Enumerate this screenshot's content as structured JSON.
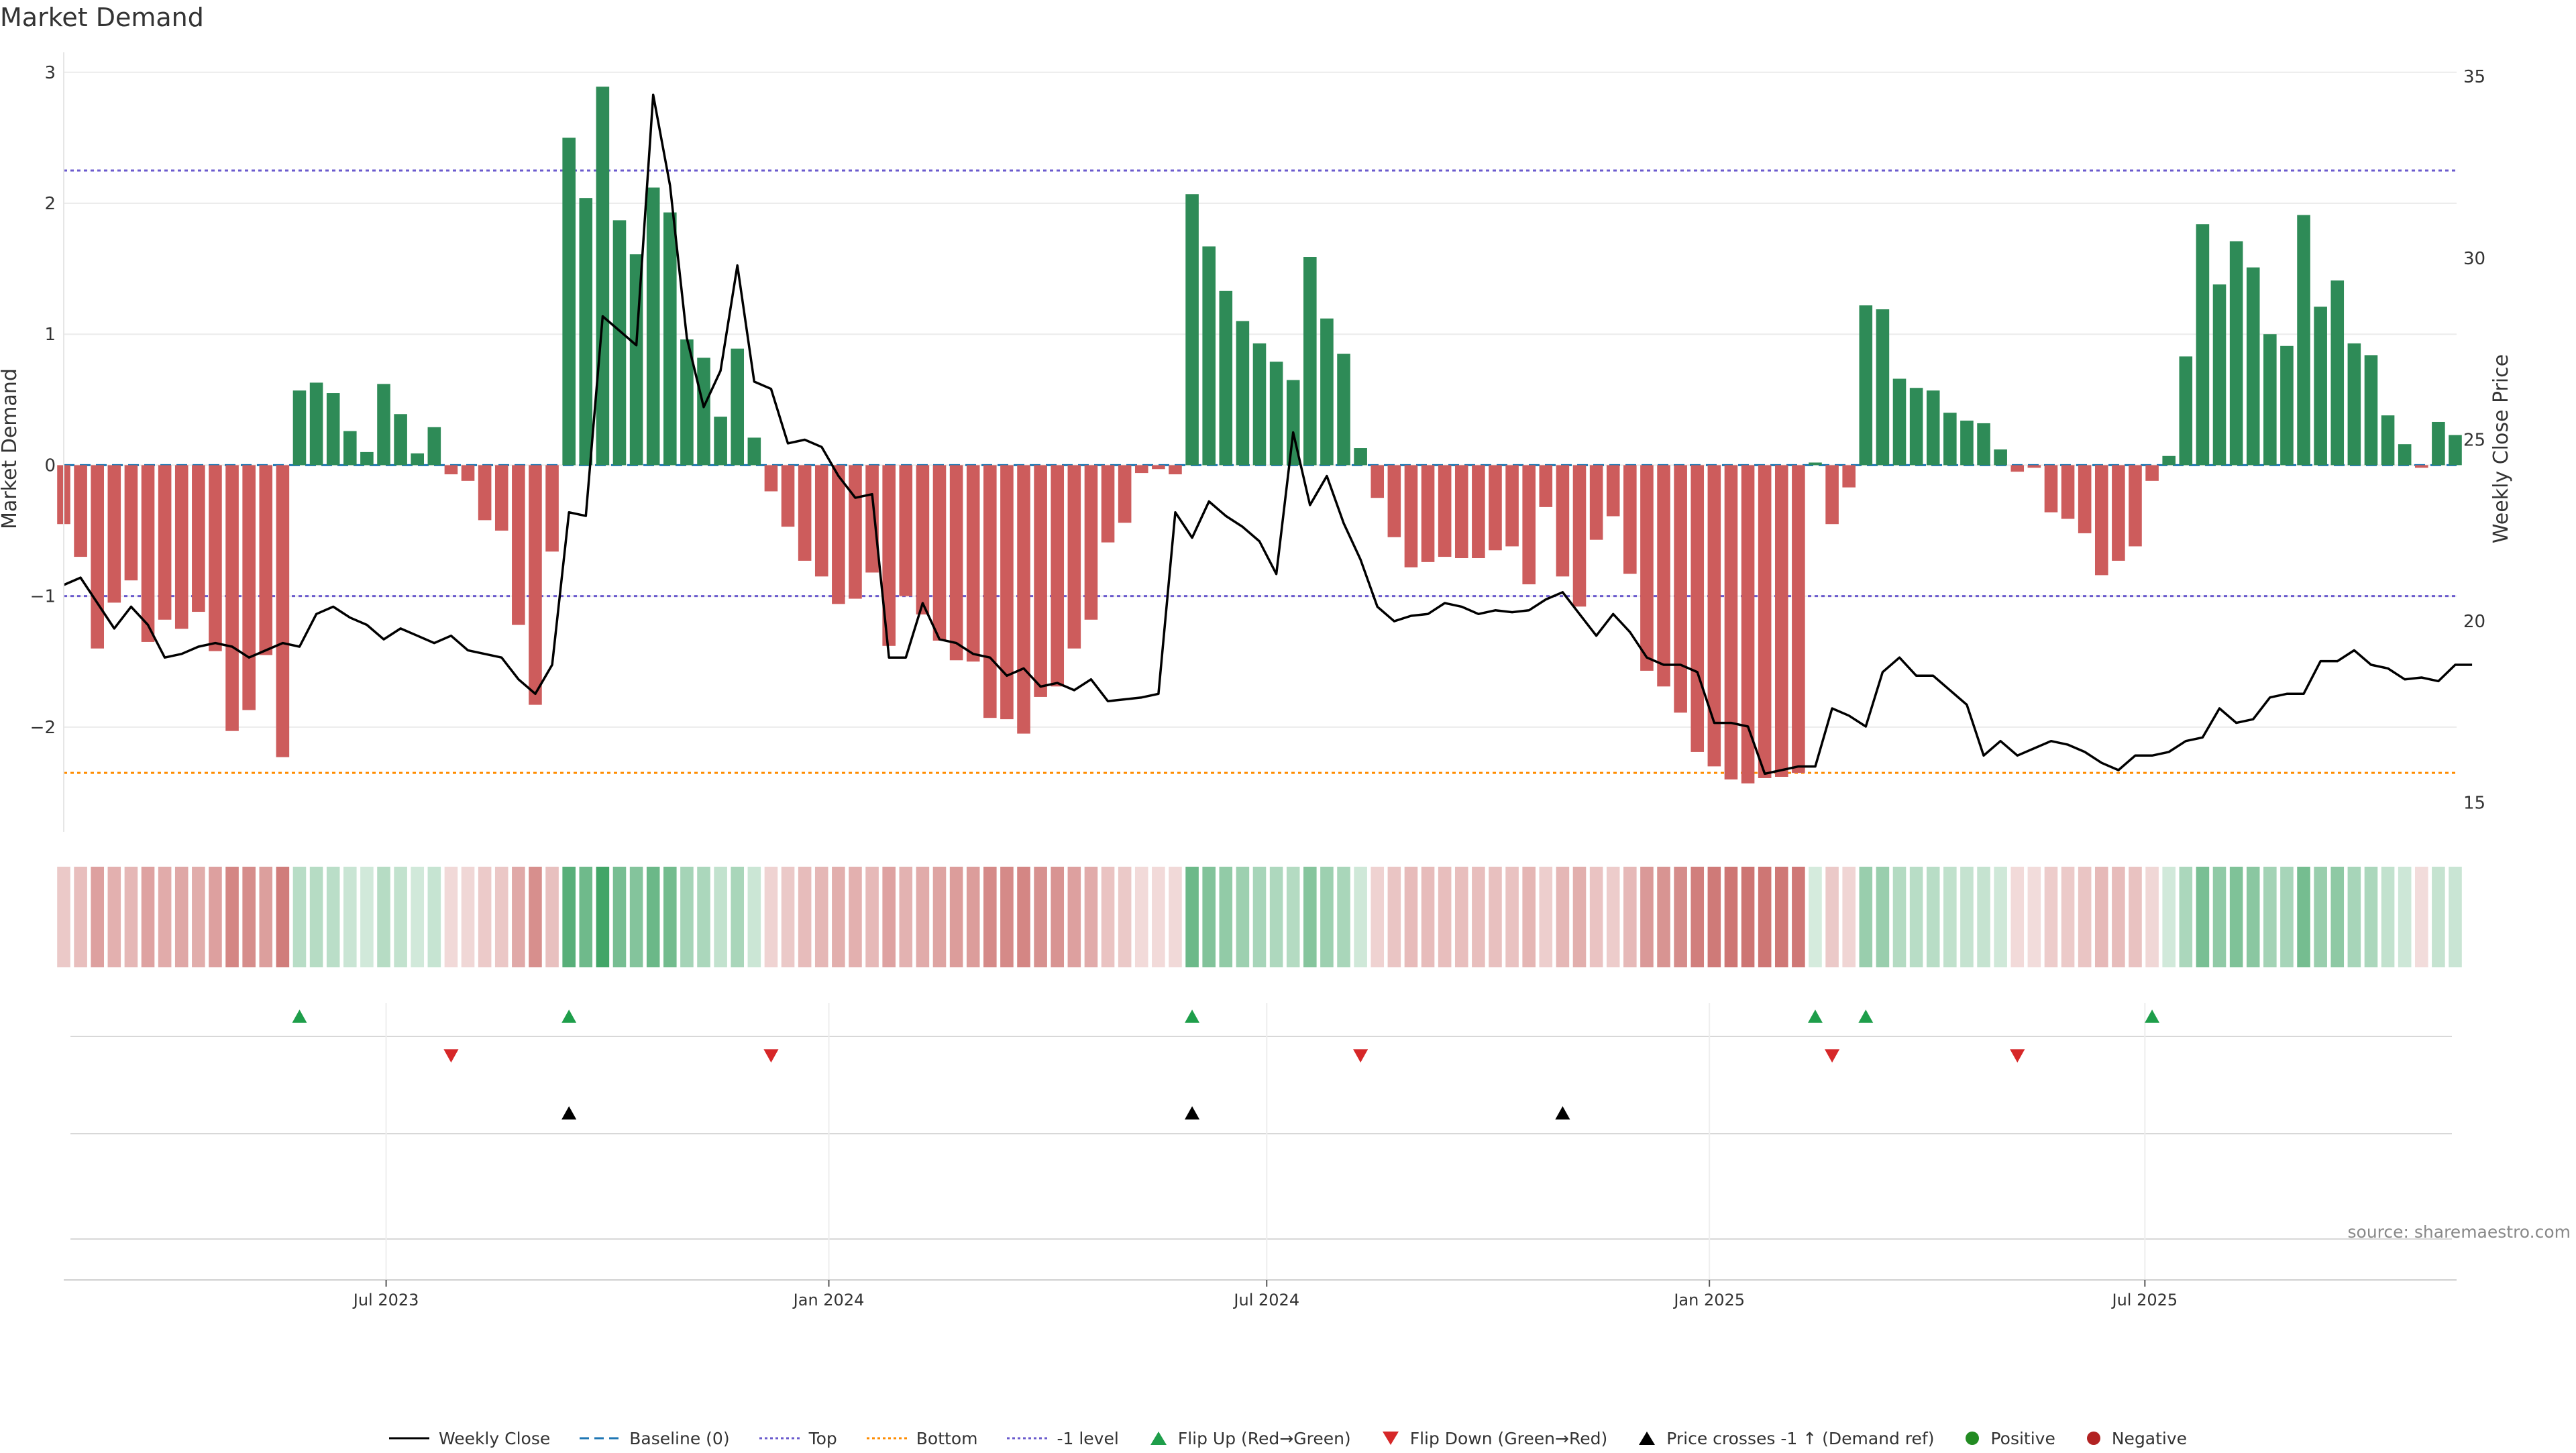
{
  "chart_title": "Market Demand",
  "source_note": "source: sharemaestro.com",
  "colors": {
    "positive": "#2e8b57",
    "negative": "#cd5c5c",
    "price_line": "#000000",
    "baseline": "#1f77b4",
    "top": "#6a5acd",
    "bottom": "#ff8c00",
    "neg1_level": "#6a5acd",
    "flip_up": "#1e9e4a",
    "flip_down": "#d62728",
    "cross_marker": "#000000"
  },
  "legend": {
    "weekly_close": "Weekly Close",
    "baseline": "Baseline (0)",
    "top": "Top",
    "bottom": "Bottom",
    "neg1_level": "-1 level",
    "flip_up": "Flip Up (Red→Green)",
    "flip_down": "Flip Down (Green→Red)",
    "price_crosses": "Price crosses -1 ↑ (Demand ref)",
    "positive": "Positive",
    "negative": "Negative"
  },
  "chart_data": {
    "type": "bar",
    "ylabel": "Market Demand",
    "y2label": "Weekly Close Price",
    "ylim": [
      -2.8,
      3.05
    ],
    "y2lim": [
      14.2,
      35.3
    ],
    "yticks": [
      3,
      2,
      1,
      0,
      -1,
      -2
    ],
    "ytick_labels": [
      "3",
      "2",
      "1",
      "0",
      "−1",
      "−2"
    ],
    "y2ticks": [
      35,
      30,
      25,
      20,
      15
    ],
    "y2tick_labels": [
      "35",
      "30",
      "25",
      "20",
      "15"
    ],
    "x_start": "2023-02-17",
    "x_step_days": 7,
    "xticks": [
      "2023-07-01",
      "2024-01-01",
      "2024-07-01",
      "2025-01-01",
      "2025-07-01"
    ],
    "xtick_labels": [
      "Jul 2023",
      "Jan 2024",
      "Jul 2024",
      "Jan 2025",
      "Jul 2025"
    ],
    "reference_lines": {
      "baseline": 0,
      "top": 2.25,
      "bottom": -2.35,
      "neg1_level": -1
    },
    "series": [
      {
        "name": "Market Demand",
        "values": [
          -0.45,
          -0.7,
          -1.4,
          -1.05,
          -0.88,
          -1.35,
          -1.18,
          -1.25,
          -1.12,
          -1.42,
          -2.03,
          -1.87,
          -1.45,
          -2.23,
          0.57,
          0.63,
          0.55,
          0.26,
          0.1,
          0.62,
          0.39,
          0.09,
          0.29,
          -0.07,
          -0.12,
          -0.42,
          -0.5,
          -1.22,
          -1.83,
          -0.66,
          2.5,
          2.04,
          2.89,
          1.87,
          1.61,
          2.12,
          1.93,
          0.96,
          0.82,
          0.37,
          0.89,
          0.21,
          -0.2,
          -0.47,
          -0.73,
          -0.85,
          -1.06,
          -1.02,
          -0.82,
          -1.38,
          -1.0,
          -1.14,
          -1.34,
          -1.49,
          -1.5,
          -1.93,
          -1.94,
          -2.05,
          -1.77,
          -1.69,
          -1.4,
          -1.18,
          -0.59,
          -0.44,
          -0.06,
          -0.03,
          -0.07,
          2.07,
          1.67,
          1.33,
          1.1,
          0.93,
          0.79,
          0.65,
          1.59,
          1.12,
          0.85,
          0.13,
          -0.25,
          -0.55,
          -0.78,
          -0.74,
          -0.7,
          -0.71,
          -0.71,
          -0.65,
          -0.62,
          -0.91,
          -0.32,
          -0.85,
          -1.08,
          -0.57,
          -0.39,
          -0.83,
          -1.57,
          -1.69,
          -1.89,
          -2.19,
          -2.3,
          -2.4,
          -2.43,
          -2.39,
          -2.38,
          -2.35,
          0.02,
          -0.45,
          -0.17,
          1.22,
          1.19,
          0.66,
          0.59,
          0.57,
          0.4,
          0.34,
          0.32,
          0.12,
          -0.05,
          -0.02,
          -0.36,
          -0.41,
          -0.52,
          -0.84,
          -0.73,
          -0.62,
          -0.12,
          0.07,
          0.83,
          1.84,
          1.38,
          1.71,
          1.51,
          1.0,
          0.91,
          1.91,
          1.21,
          1.41,
          0.93,
          0.84,
          0.38,
          0.16,
          -0.02,
          0.33,
          0.23
        ]
      },
      {
        "name": "Weekly Close",
        "values": [
          21.0,
          21.2,
          20.5,
          19.8,
          20.4,
          19.9,
          19.0,
          19.1,
          19.3,
          19.4,
          19.3,
          19.0,
          19.2,
          19.4,
          19.3,
          20.2,
          20.4,
          20.1,
          19.9,
          19.5,
          19.8,
          19.6,
          19.4,
          19.6,
          19.2,
          19.1,
          19.0,
          18.4,
          18.0,
          18.8,
          23.0,
          22.9,
          28.4,
          28.0,
          27.6,
          34.5,
          32.0,
          27.8,
          25.9,
          26.9,
          29.8,
          26.6,
          26.4,
          24.9,
          25.0,
          24.8,
          24.0,
          23.4,
          23.5,
          19.0,
          19.0,
          20.5,
          19.5,
          19.4,
          19.1,
          19.0,
          18.5,
          18.7,
          18.2,
          18.3,
          18.1,
          18.4,
          17.8,
          17.85,
          17.9,
          18.0,
          23.0,
          22.3,
          23.3,
          22.9,
          22.6,
          22.2,
          21.3,
          25.2,
          23.2,
          24.0,
          22.7,
          21.7,
          20.4,
          20.0,
          20.15,
          20.2,
          20.5,
          20.4,
          20.2,
          20.3,
          20.25,
          20.3,
          20.6,
          20.8,
          20.2,
          19.6,
          20.2,
          19.7,
          19.0,
          18.8,
          18.8,
          18.6,
          17.2,
          17.2,
          17.1,
          15.8,
          15.9,
          16.0,
          16.0,
          17.6,
          17.4,
          17.1,
          18.6,
          19.0,
          18.5,
          18.5,
          18.1,
          17.7,
          16.3,
          16.7,
          16.3,
          16.5,
          16.7,
          16.6,
          16.4,
          16.1,
          15.9,
          16.3,
          16.3,
          16.4,
          16.7,
          16.8,
          17.6,
          17.2,
          17.3,
          17.9,
          18.0,
          18.0,
          18.9,
          18.9,
          19.2,
          18.8,
          18.7,
          18.4,
          18.45,
          18.35,
          18.8,
          18.8
        ]
      }
    ],
    "flip_up_dates": [
      "2023-05-26",
      "2023-09-15",
      "2024-05-31",
      "2025-02-14",
      "2025-03-07",
      "2025-07-04"
    ],
    "flip_down_dates": [
      "2023-07-28",
      "2023-12-08",
      "2024-08-09",
      "2025-02-21",
      "2025-05-09"
    ],
    "price_cross_dates": [
      "2023-09-15",
      "2024-05-31",
      "2024-11-01"
    ]
  }
}
